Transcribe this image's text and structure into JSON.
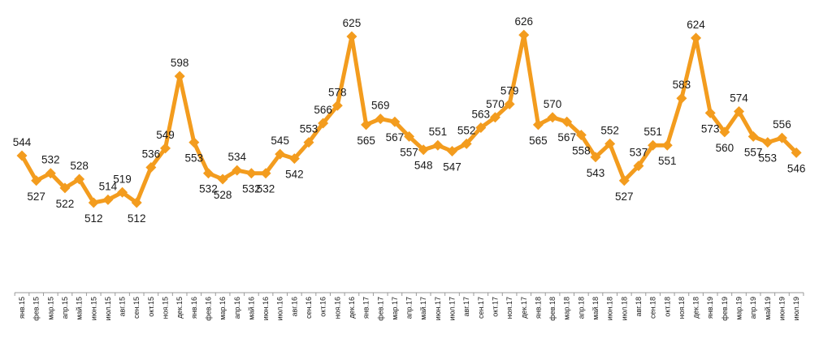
{
  "chart_data": {
    "type": "line",
    "title": "",
    "xlabel": "",
    "ylabel": "",
    "ylim": [
      480,
      640
    ],
    "grid": false,
    "legend": "none",
    "line_color": "#F39C1E",
    "marker": "diamond",
    "categories": [
      "янв.15",
      "фев.15",
      "мар.15",
      "апр.15",
      "май.15",
      "июн.15",
      "июл.15",
      "авг.15",
      "сен.15",
      "окт.15",
      "ноя.15",
      "дек.15",
      "янв.16",
      "фев.16",
      "мар.16",
      "апр.16",
      "май.16",
      "июн.16",
      "июл.16",
      "авг.16",
      "сен.16",
      "окт.16",
      "ноя.16",
      "дек.16",
      "янв.17",
      "фев.17",
      "мар.17",
      "апр.17",
      "май.17",
      "июн.17",
      "июл.17",
      "авг.17",
      "сен.17",
      "окт.17",
      "ноя.17",
      "дек.17",
      "янв.18",
      "фев.18",
      "мар.18",
      "апр.18",
      "май.18",
      "июн.18",
      "июл.18",
      "авг.18",
      "сен.18",
      "окт.18",
      "ноя.18",
      "дек.18",
      "янв.19",
      "фев.19",
      "мар.19",
      "апр.19",
      "май.19",
      "июн.19",
      "июл.19"
    ],
    "series": [
      {
        "values": [
          544,
          527,
          532,
          522,
          528,
          512,
          514,
          519,
          512,
          536,
          549,
          598,
          553,
          532,
          528,
          534,
          532,
          532,
          545,
          542,
          553,
          566,
          578,
          625,
          565,
          569,
          567,
          557,
          548,
          551,
          547,
          552,
          563,
          570,
          579,
          626,
          565,
          570,
          567,
          558,
          543,
          552,
          527,
          537,
          551,
          551,
          583,
          624,
          573,
          560,
          574,
          557,
          553,
          556,
          546
        ]
      }
    ]
  }
}
